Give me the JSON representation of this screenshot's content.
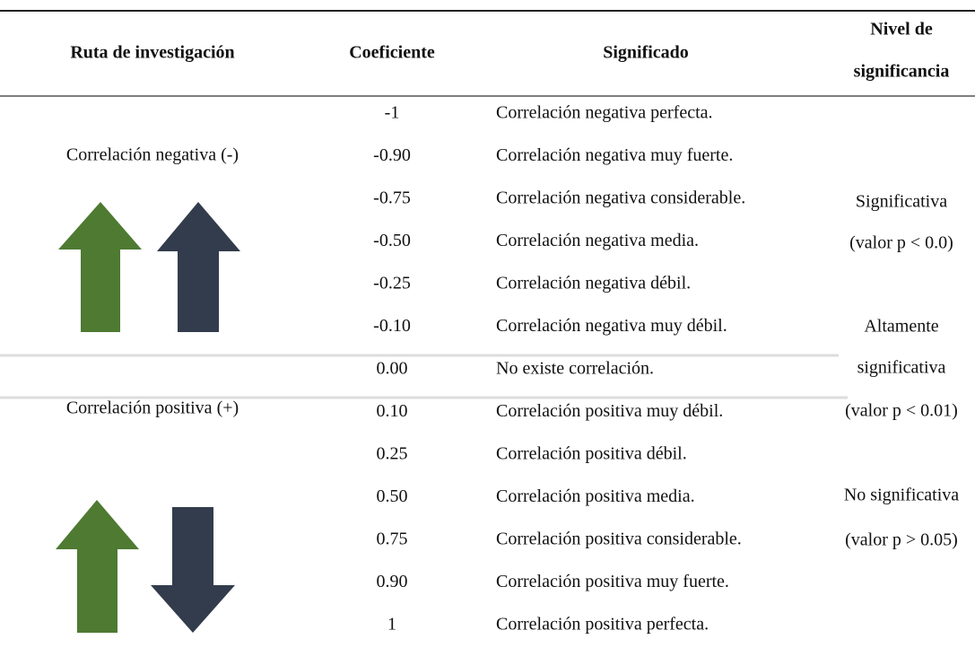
{
  "table": {
    "header": {
      "route": "Ruta de investigación",
      "coefficient": "Coeficiente",
      "meaning": "Significado",
      "level": [
        "Nivel de",
        "significancia"
      ]
    },
    "groups": [
      "Correlación negativa (-)",
      "Correlación positiva (+)"
    ],
    "rows": [
      [
        "-1",
        "Correlación negativa perfecta."
      ],
      [
        "-0.90",
        "Correlación negativa muy fuerte."
      ],
      [
        "-0.75",
        "Correlación negativa considerable."
      ],
      [
        "-0.50",
        "Correlación negativa media."
      ],
      [
        "-0.25",
        "Correlación negativa débil."
      ],
      [
        "-0.10",
        "Correlación negativa muy débil."
      ],
      [
        "0.00",
        "No existe correlación."
      ],
      [
        "0.10",
        "Correlación positiva muy débil."
      ],
      [
        "0.25",
        "Correlación positiva débil."
      ],
      [
        "0.50",
        "Correlación positiva media."
      ],
      [
        "0.75",
        "Correlación positiva considerable."
      ],
      [
        "0.90",
        "Correlación positiva muy fuerte."
      ],
      [
        "1",
        "Correlación positiva perfecta."
      ]
    ],
    "levels": [
      [
        "Significativa",
        "(valor p < 0.0)"
      ],
      [
        "Altamente",
        "significativa",
        "(valor p < 0.01)"
      ],
      [
        "No significativa",
        "(valor p > 0.05)"
      ]
    ]
  }
}
